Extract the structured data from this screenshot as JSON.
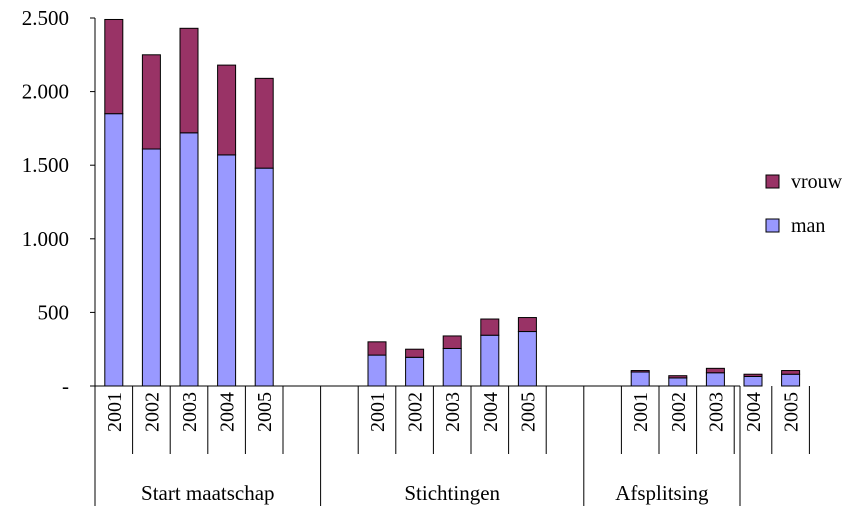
{
  "chart_data": {
    "type": "bar",
    "stacked": true,
    "title": "",
    "xlabel": "",
    "ylabel": "",
    "ylim": [
      0,
      2500
    ],
    "y_ticks": [
      "-",
      "500",
      "1.000",
      "1.500",
      "2.000",
      "2.500"
    ],
    "groups": [
      {
        "label": "Start maatschap",
        "categories": [
          "2001",
          "2002",
          "2003",
          "2004",
          "2005"
        ]
      },
      {
        "label": "Stichtingen",
        "categories": [
          "2001",
          "2002",
          "2003",
          "2004",
          "2005"
        ]
      },
      {
        "label": "Afsplitsing",
        "categories": [
          "2001",
          "2002",
          "2003",
          "2004",
          "2005"
        ]
      }
    ],
    "series": [
      {
        "name": "man",
        "color": "#9999ff",
        "values": [
          1850,
          1610,
          1720,
          1570,
          1480,
          210,
          195,
          255,
          345,
          370,
          95,
          55,
          90,
          65,
          80
        ]
      },
      {
        "name": "vrouw",
        "color": "#993366",
        "values": [
          640,
          640,
          710,
          610,
          610,
          90,
          55,
          85,
          110,
          95,
          10,
          15,
          30,
          15,
          25
        ]
      }
    ],
    "legend": {
      "position": "right",
      "entries": [
        "vrouw",
        "man"
      ]
    },
    "grid": false
  }
}
